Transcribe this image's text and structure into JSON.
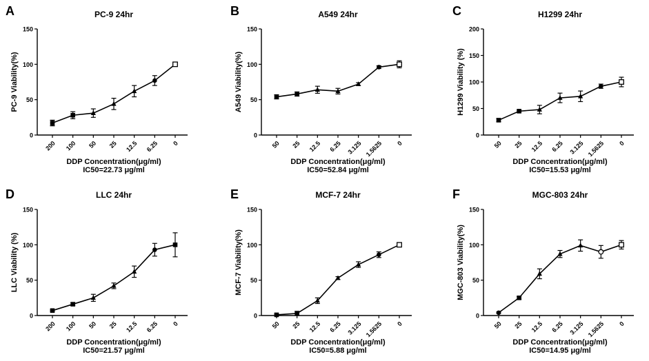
{
  "figure": {
    "panels": [
      "A",
      "B",
      "C",
      "D",
      "E",
      "F"
    ]
  },
  "chart_data": [
    {
      "type": "line",
      "panel": "A",
      "title": "PC-9 24hr",
      "ylabel": "PC-9 Viability(%)",
      "xlabel": "DDP Concentration(μg/ml)",
      "annotation": "IC50=22.73 μg/ml",
      "categories": [
        "200",
        "100",
        "50",
        "25",
        "12.5",
        "6.25",
        "0"
      ],
      "values": [
        17,
        28,
        31,
        44,
        62,
        77,
        100
      ],
      "errors": [
        4,
        5,
        6,
        8,
        8,
        7,
        2
      ],
      "markers": [
        "square",
        "square",
        "triangle",
        "triangle",
        "triangle",
        "circle",
        "open-square"
      ],
      "ylim": [
        0,
        150
      ],
      "yticks": [
        0,
        50,
        100,
        150
      ]
    },
    {
      "type": "line",
      "panel": "B",
      "title": "A549 24hr",
      "ylabel": "A549 Viability(%)",
      "xlabel": "DDP Concentration(μg/ml)",
      "annotation": "IC50=52.84 μg/ml",
      "categories": [
        "50",
        "25",
        "12.5",
        "6.25",
        "3.125",
        "1.5625",
        "0"
      ],
      "values": [
        54,
        58,
        64,
        62,
        72,
        96,
        100
      ],
      "errors": [
        3,
        3,
        5,
        4,
        2,
        2,
        5
      ],
      "markers": [
        "square",
        "square",
        "triangle",
        "triangle",
        "triangle",
        "circle",
        "open-square"
      ],
      "ylim": [
        0,
        150
      ],
      "yticks": [
        0,
        50,
        100,
        150
      ]
    },
    {
      "type": "line",
      "panel": "C",
      "title": "H1299 24hr",
      "ylabel": "H1299 Viability (%)",
      "xlabel": "DDP Concentration(μg/ml)",
      "annotation": "IC50=15.53 μg/ml",
      "categories": [
        "50",
        "25",
        "12.5",
        "6.25",
        "3.125",
        "1.5625",
        "0"
      ],
      "values": [
        28,
        45,
        48,
        70,
        73,
        92,
        100
      ],
      "errors": [
        3,
        2,
        8,
        9,
        10,
        4,
        9
      ],
      "markers": [
        "square",
        "square",
        "triangle",
        "triangle",
        "triangle",
        "circle",
        "open-square"
      ],
      "ylim": [
        0,
        200
      ],
      "yticks": [
        0,
        50,
        100,
        150,
        200
      ]
    },
    {
      "type": "line",
      "panel": "D",
      "title": "LLC 24hr",
      "ylabel": "LLC Viability (%)",
      "xlabel": "DDP Concentration(μg/ml)",
      "annotation": "IC50=21.57 μg/ml",
      "categories": [
        "200",
        "100",
        "50",
        "25",
        "12.5",
        "6.25",
        "0"
      ],
      "values": [
        7,
        16,
        25,
        42,
        62,
        93,
        100
      ],
      "errors": [
        1,
        2,
        5,
        4,
        8,
        9,
        17
      ],
      "markers": [
        "square",
        "square",
        "triangle",
        "triangle",
        "triangle",
        "circle",
        "square"
      ],
      "ylim": [
        0,
        150
      ],
      "yticks": [
        0,
        50,
        100,
        150
      ]
    },
    {
      "type": "line",
      "panel": "E",
      "title": "MCF-7 24hr",
      "ylabel": "MCF-7 Viability(%)",
      "xlabel": "DDP Concentration(μg/ml)",
      "annotation": "IC50=5.88 μg/ml",
      "categories": [
        "50",
        "25",
        "12.5",
        "6.25",
        "3.125",
        "1.5625",
        "0"
      ],
      "values": [
        1,
        3,
        21,
        53,
        72,
        86,
        100
      ],
      "errors": [
        1,
        3,
        4,
        2,
        4,
        4,
        2
      ],
      "markers": [
        "square",
        "square",
        "triangle",
        "triangle",
        "triangle",
        "circle",
        "open-square"
      ],
      "ylim": [
        0,
        150
      ],
      "yticks": [
        0,
        50,
        100,
        150
      ]
    },
    {
      "type": "line",
      "panel": "F",
      "title": "MGC-803 24hr",
      "ylabel": "MGC-803 Viability(%)",
      "xlabel": "DDP Concentration(μg/ml)",
      "annotation": "IC50=14.95 μg/ml",
      "categories": [
        "50",
        "25",
        "12.5",
        "6.25",
        "3.125",
        "1.5625",
        "0"
      ],
      "values": [
        4,
        25,
        59,
        87,
        99,
        90,
        100
      ],
      "errors": [
        1,
        2,
        7,
        5,
        8,
        9,
        6
      ],
      "markers": [
        "circle",
        "square",
        "triangle",
        "triangle",
        "triangle",
        "open-circle",
        "open-square"
      ],
      "ylim": [
        0,
        150
      ],
      "yticks": [
        0,
        50,
        100,
        150
      ]
    }
  ]
}
